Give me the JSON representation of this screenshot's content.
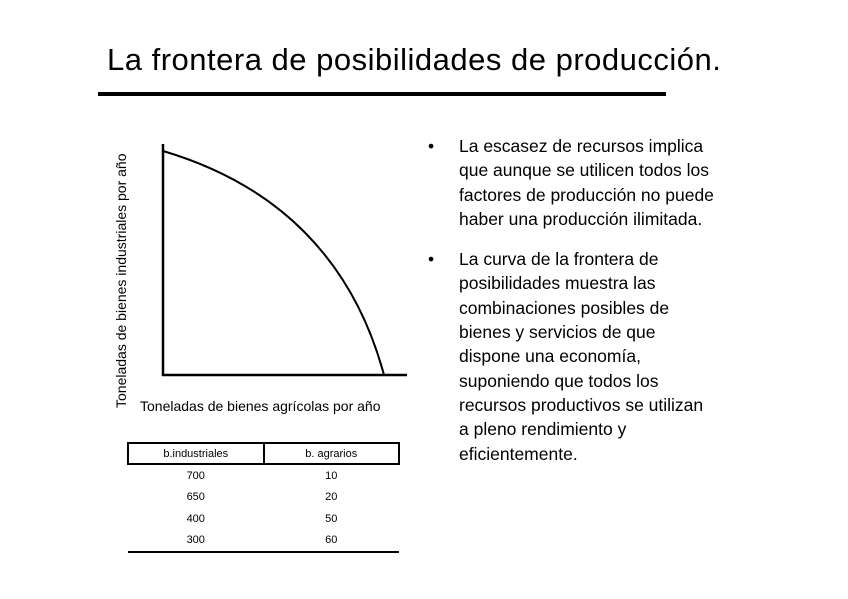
{
  "title": "La frontera de posibilidades de producción.",
  "diagram": {
    "y_axis_label": "Toneladas de bienes industriales por año",
    "x_axis_label": "Toneladas de bienes agrícolas por año"
  },
  "bullets": [
    {
      "marker": "•",
      "lines": [
        "La escasez de recursos implica",
        "que aunque se utilicen todos los",
        "factores de producción no puede",
        "haber una producción ilimitada."
      ]
    },
    {
      "marker": "•",
      "lines": [
        "La curva de la frontera de",
        "posibilidades muestra las",
        "combinaciones posibles de",
        "bienes y servicios de que",
        "dispone una economía,",
        "suponiendo que todos los",
        "recursos productivos se utilizan",
        "a pleno rendimiento y",
        "eficientemente."
      ]
    }
  ],
  "table": {
    "headers": [
      "b.industriales",
      "b. agrarios"
    ],
    "rows": [
      [
        "700",
        "10"
      ],
      [
        "650",
        "20"
      ],
      [
        "400",
        "50"
      ],
      [
        "300",
        "60"
      ]
    ]
  }
}
